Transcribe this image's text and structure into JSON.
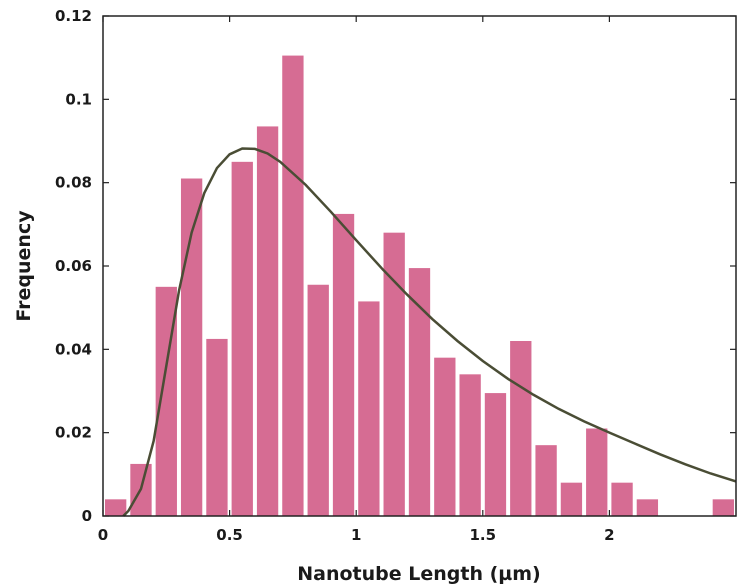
{
  "chart_data": {
    "type": "bar",
    "title": "",
    "xlabel": "Nanotube Length (µm)",
    "ylabel": "Frequency",
    "xlim": [
      0,
      2.5
    ],
    "ylim": [
      0,
      0.12
    ],
    "grid": false,
    "legend": "none",
    "x_ticks": [
      {
        "value": 0,
        "label": "0"
      },
      {
        "value": 0.5,
        "label": "0.5"
      },
      {
        "value": 1,
        "label": "1"
      },
      {
        "value": 1.5,
        "label": "1.5"
      },
      {
        "value": 2,
        "label": "2"
      }
    ],
    "y_ticks": [
      {
        "value": 0,
        "label": "0"
      },
      {
        "value": 0.02,
        "label": "0.02"
      },
      {
        "value": 0.04,
        "label": "0.04"
      },
      {
        "value": 0.06,
        "label": "0.06"
      },
      {
        "value": 0.08,
        "label": "0.08"
      },
      {
        "value": 0.1,
        "label": "0.1"
      },
      {
        "value": 0.12,
        "label": "0.12"
      }
    ],
    "bin_width": 0.1,
    "bins": [
      {
        "x": 0.05,
        "value": 0.004
      },
      {
        "x": 0.15,
        "value": 0.0125
      },
      {
        "x": 0.25,
        "value": 0.055
      },
      {
        "x": 0.35,
        "value": 0.081
      },
      {
        "x": 0.45,
        "value": 0.0425
      },
      {
        "x": 0.55,
        "value": 0.085
      },
      {
        "x": 0.65,
        "value": 0.0935
      },
      {
        "x": 0.75,
        "value": 0.1105
      },
      {
        "x": 0.85,
        "value": 0.0555
      },
      {
        "x": 0.95,
        "value": 0.0725
      },
      {
        "x": 1.05,
        "value": 0.0515
      },
      {
        "x": 1.15,
        "value": 0.068
      },
      {
        "x": 1.25,
        "value": 0.0595
      },
      {
        "x": 1.35,
        "value": 0.038
      },
      {
        "x": 1.45,
        "value": 0.034
      },
      {
        "x": 1.55,
        "value": 0.0295
      },
      {
        "x": 1.65,
        "value": 0.042
      },
      {
        "x": 1.75,
        "value": 0.017
      },
      {
        "x": 1.85,
        "value": 0.008
      },
      {
        "x": 1.95,
        "value": 0.021
      },
      {
        "x": 2.05,
        "value": 0.008
      },
      {
        "x": 2.15,
        "value": 0.004
      },
      {
        "x": 2.45,
        "value": 0.004
      }
    ],
    "fit_curve": [
      [
        0.08,
        0.0
      ],
      [
        0.1,
        0.0012
      ],
      [
        0.15,
        0.0065
      ],
      [
        0.2,
        0.018
      ],
      [
        0.25,
        0.036
      ],
      [
        0.3,
        0.054
      ],
      [
        0.35,
        0.068
      ],
      [
        0.4,
        0.0775
      ],
      [
        0.45,
        0.0835
      ],
      [
        0.5,
        0.0868
      ],
      [
        0.55,
        0.0882
      ],
      [
        0.6,
        0.0881
      ],
      [
        0.65,
        0.087
      ],
      [
        0.7,
        0.085
      ],
      [
        0.8,
        0.0795
      ],
      [
        0.9,
        0.073
      ],
      [
        1.0,
        0.0662
      ],
      [
        1.1,
        0.0595
      ],
      [
        1.2,
        0.0532
      ],
      [
        1.3,
        0.0473
      ],
      [
        1.4,
        0.042
      ],
      [
        1.5,
        0.0372
      ],
      [
        1.6,
        0.0329
      ],
      [
        1.7,
        0.0291
      ],
      [
        1.8,
        0.0257
      ],
      [
        1.9,
        0.0227
      ],
      [
        2.0,
        0.02
      ],
      [
        2.1,
        0.0174
      ],
      [
        2.2,
        0.0148
      ],
      [
        2.3,
        0.0124
      ],
      [
        2.4,
        0.0102
      ],
      [
        2.5,
        0.0083
      ]
    ],
    "colors": {
      "bar": "#d66c93",
      "curve": "#4a4d35",
      "axis": "#222222"
    }
  }
}
